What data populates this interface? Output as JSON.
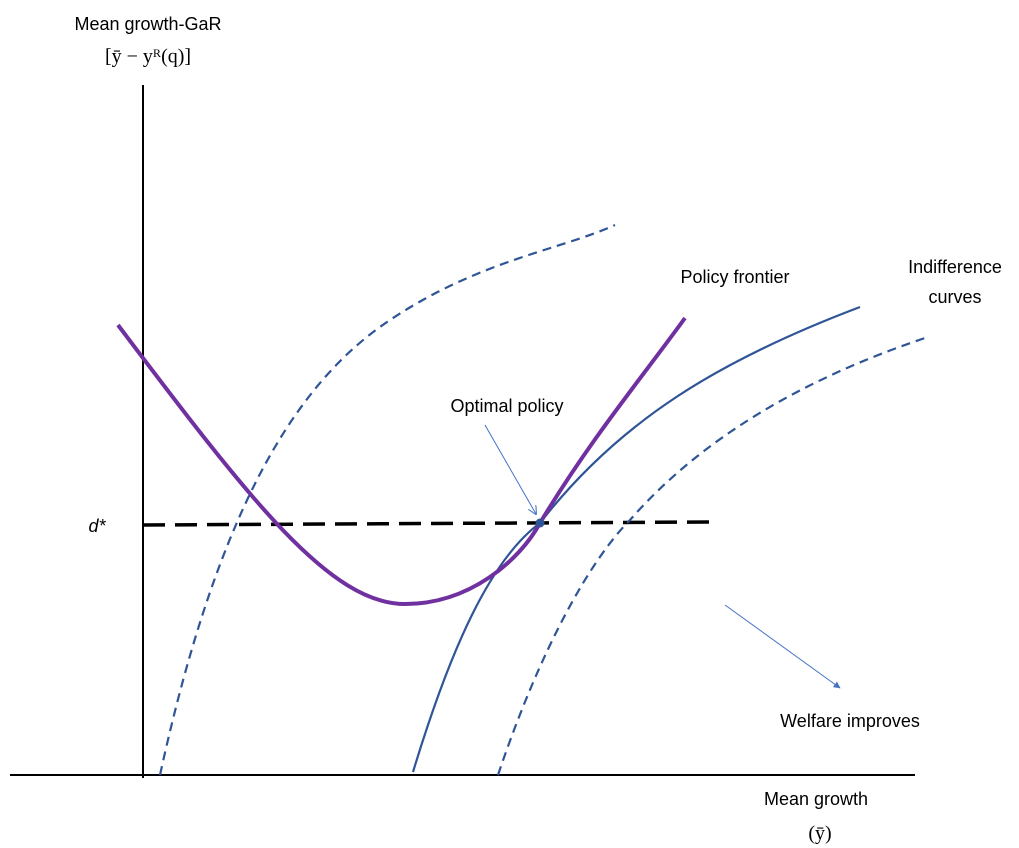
{
  "y_axis_label": {
    "line1": "Mean growth-GaR",
    "line2": "[ȳ − yᴿ(q)]"
  },
  "x_axis_label": {
    "line1": "Mean growth",
    "line2": "(ȳ)"
  },
  "threshold_label": "d*",
  "annotations": {
    "optimal_policy": "Optimal policy",
    "policy_frontier": "Policy frontier",
    "indifference_curves": [
      "Indifference",
      "curves"
    ],
    "welfare": "Welfare improves"
  }
}
